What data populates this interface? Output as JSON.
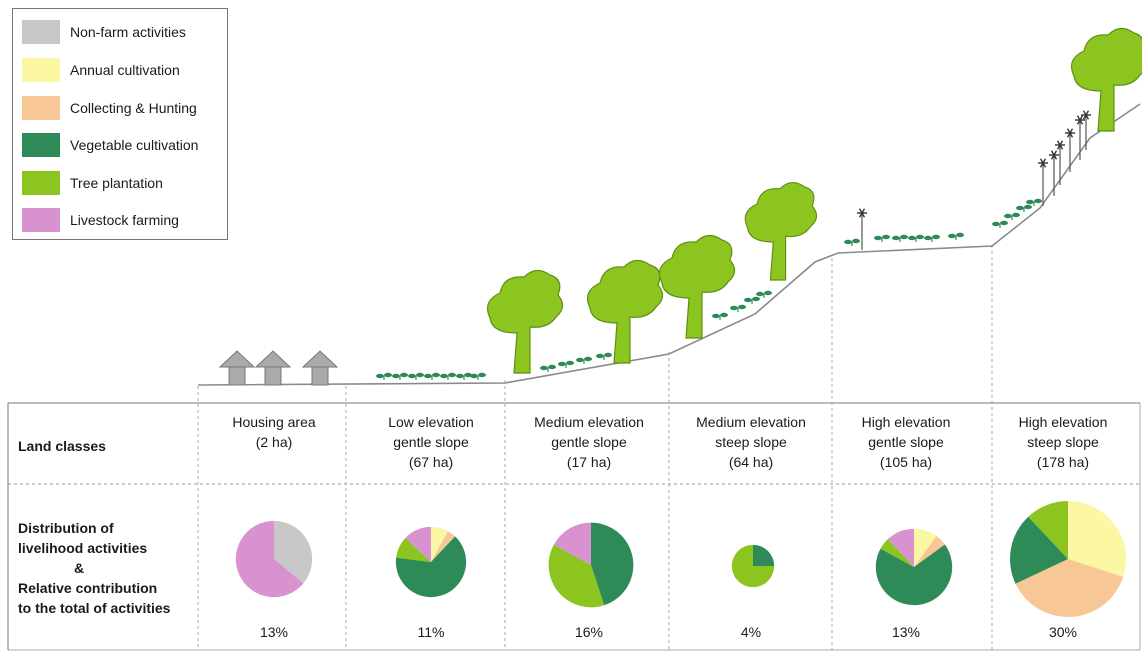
{
  "legend": [
    {
      "label": "Non-farm activities",
      "color": "#c8c8c8"
    },
    {
      "label": "Annual cultivation",
      "color": "#fbf7a2"
    },
    {
      "label": "Collecting & Hunting",
      "color": "#f7c896"
    },
    {
      "label": "Vegetable cultivation",
      "color": "#2e8b57"
    },
    {
      "label": "Tree plantation",
      "color": "#8cc520"
    },
    {
      "label": "Livestock farming",
      "color": "#d892cf"
    }
  ],
  "table": {
    "land_classes_title": "Land classes",
    "distribution_title": [
      "Distribution of",
      "livelihood activities",
      "&",
      "Relative contribution",
      "to the total of activities"
    ]
  },
  "chart_data": {
    "type": "pie",
    "categories": [
      "Non-farm activities",
      "Annual cultivation",
      "Collecting & Hunting",
      "Vegetable cultivation",
      "Tree plantation",
      "Livestock farming"
    ],
    "colors": [
      "#c8c8c8",
      "#fbf7a2",
      "#f7c896",
      "#2e8b57",
      "#8cc520",
      "#d892cf"
    ],
    "columns": [
      {
        "label": [
          "Housing area",
          "(2 ha)"
        ],
        "share": "13%",
        "share_value": 13,
        "values": [
          36,
          0,
          0,
          0,
          0,
          64
        ]
      },
      {
        "label": [
          "Low elevation",
          "gentle slope",
          "(67 ha)"
        ],
        "share": "11%",
        "share_value": 11,
        "values": [
          0,
          8,
          4,
          65,
          10,
          13
        ]
      },
      {
        "label": [
          "Medium elevation",
          "gentle slope",
          "(17 ha)"
        ],
        "share": "16%",
        "share_value": 16,
        "values": [
          0,
          0,
          0,
          45,
          38,
          17
        ]
      },
      {
        "label": [
          "Medium elevation",
          "steep slope",
          "(64 ha)"
        ],
        "share": "4%",
        "share_value": 4,
        "values": [
          0,
          0,
          0,
          25,
          75,
          0
        ]
      },
      {
        "label": [
          "High elevation",
          "gentle slope",
          "(105 ha)"
        ],
        "share": "13%",
        "share_value": 13,
        "values": [
          0,
          10,
          5,
          68,
          5,
          12
        ]
      },
      {
        "label": [
          "High elevation",
          "steep slope",
          "(178 ha)"
        ],
        "share": "30%",
        "share_value": 30,
        "values": [
          0,
          30,
          38,
          20,
          12,
          0
        ]
      }
    ]
  }
}
